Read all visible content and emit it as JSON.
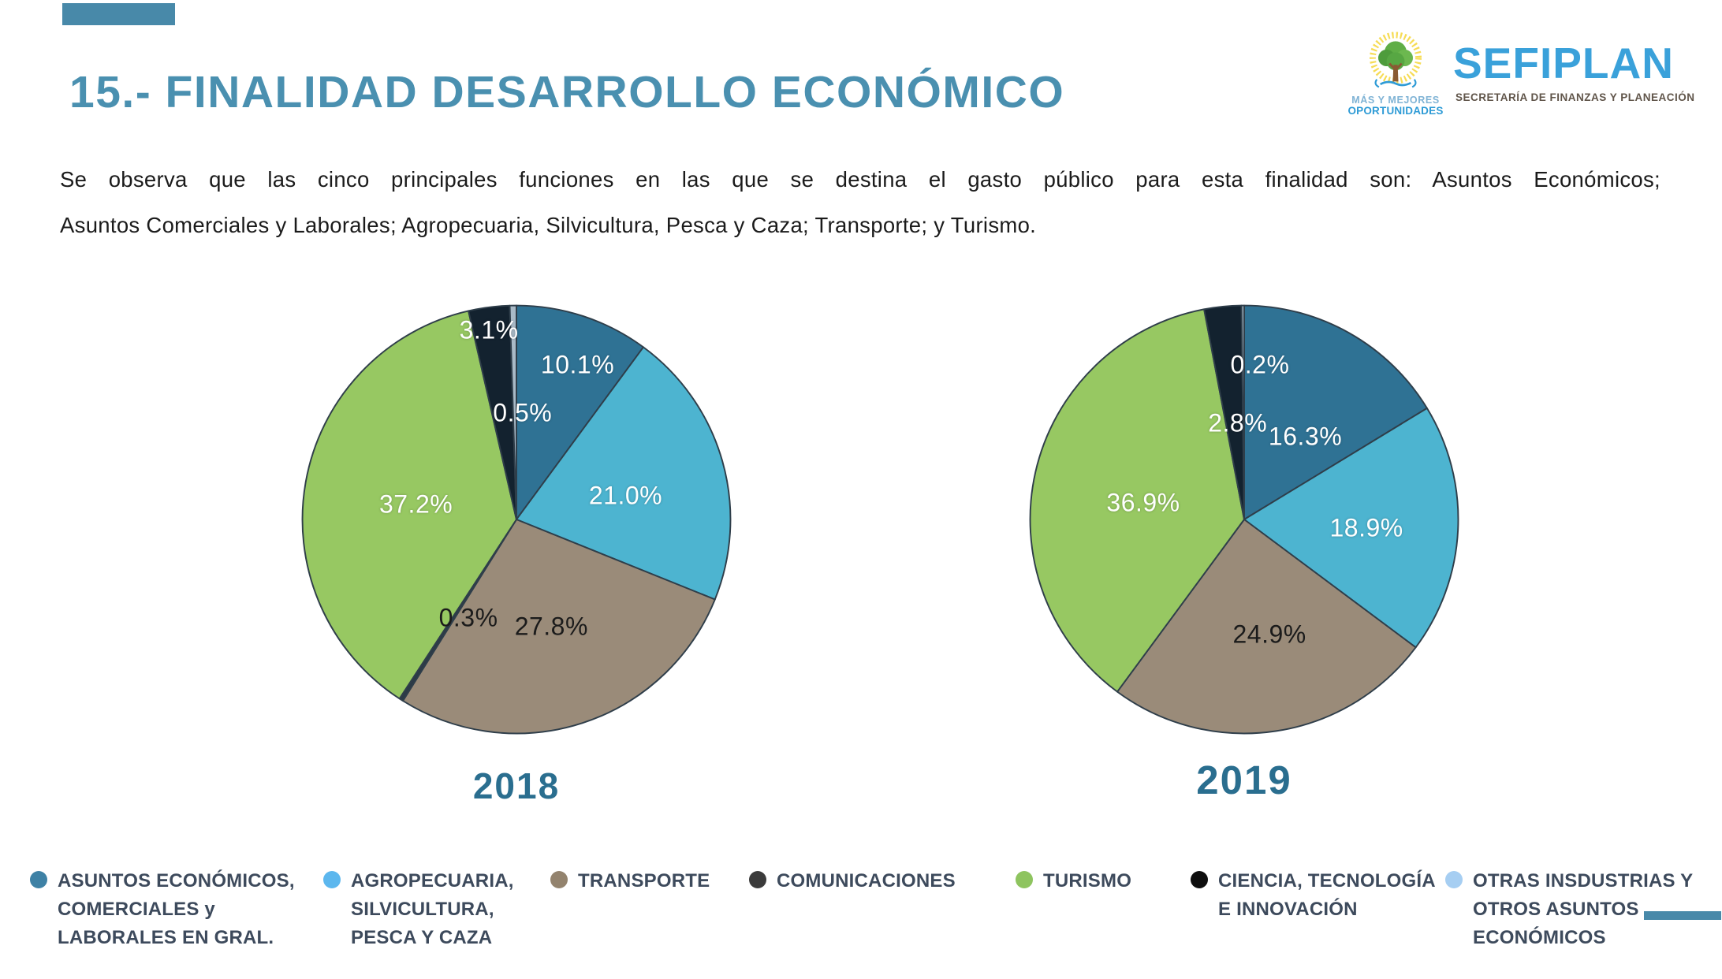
{
  "slide": {
    "title": "15.- FINALIDAD DESARROLLO ECONÓMICO",
    "paragraph_line1": "Se observa que las cinco principales funciones en las que se destina el gasto público para esta finalidad son: Asuntos Económicos;",
    "paragraph_line2": "Asuntos Comerciales y Laborales; Agropecuaria, Silvicultura, Pesca y Caza;  Transporte; y Turismo.",
    "accent_color": "#4889A9",
    "title_color": "#4A90B0",
    "year_label_color": "#2A6E8F"
  },
  "logo": {
    "tagline_line1": "MÁS Y MEJORES",
    "tagline_line2": "OPORTUNIDADES",
    "name": "SEFIPLAN",
    "subtitle": "SECRETARÍA DE FINANZAS Y PLANEACIÓN",
    "name_color": "#3AA1DA"
  },
  "chart_data": {
    "type": "pie",
    "unit": "percent",
    "start_angle_deg": -90,
    "direction": "clockwise",
    "legend_position": "bottom",
    "stroke_color": "#2F3E4A",
    "categories": [
      "ASUNTOS ECONÓMICOS, COMERCIALES y LABORALES EN GRAL.",
      "AGROPECUARIA, SILVICULTURA, PESCA Y CAZA",
      "TRANSPORTE",
      "COMUNICACIONES",
      "TURISMO",
      "CIENCIA, TECNOLOGÍA E INNOVACIÓN",
      "OTRAS INSDUSTRIAS Y OTROS ASUNTOS ECONÓMICOS"
    ],
    "colors": [
      "#2F7294",
      "#4DB4D0",
      "#9A8B79",
      "#2C3A46",
      "#97C862",
      "#13222F",
      "#A9BAC7"
    ],
    "charts": [
      {
        "year": "2018",
        "slices": [
          {
            "category_index": 0,
            "value": 10.1,
            "label": "10.1%",
            "label_color": "#FFFFFF",
            "label_pos": [
              64,
              14.6
            ]
          },
          {
            "category_index": 1,
            "value": 21.0,
            "label": "21.0%",
            "label_color": "#FFFFFF",
            "label_pos": [
              75,
              44.5
            ]
          },
          {
            "category_index": 2,
            "value": 27.8,
            "label": "27.8%",
            "label_color": "#1B1B1B",
            "label_pos": [
              58,
              74.5
            ]
          },
          {
            "category_index": 3,
            "value": 0.3,
            "label": "0.3%",
            "label_color": "#1B1B1B",
            "label_pos": [
              39,
              72.5
            ]
          },
          {
            "category_index": 4,
            "value": 37.2,
            "label": "37.2%",
            "label_color": "#FFFFFF",
            "label_pos": [
              27,
              46.5
            ]
          },
          {
            "category_index": 5,
            "value": 3.1,
            "label": "3.1%",
            "label_color": "#FFFFFF",
            "label_pos": [
              43.7,
              6.7
            ]
          },
          {
            "category_index": 6,
            "value": 0.5,
            "label": "0.5%",
            "label_color": "#FFFFFF",
            "label_pos": [
              51.4,
              25.6
            ]
          }
        ]
      },
      {
        "year": "2019",
        "slices": [
          {
            "category_index": 0,
            "value": 16.3,
            "label": "16.3%",
            "label_color": "#FFFFFF",
            "label_pos": [
              64,
              31
            ]
          },
          {
            "category_index": 1,
            "value": 18.9,
            "label": "18.9%",
            "label_color": "#FFFFFF",
            "label_pos": [
              78,
              52
            ]
          },
          {
            "category_index": 2,
            "value": 24.9,
            "label": "24.9%",
            "label_color": "#1B1B1B",
            "label_pos": [
              55.8,
              76.4
            ]
          },
          {
            "category_index": 3,
            "value": 0.0,
            "label": "",
            "label_color": "",
            "label_pos": [
              0,
              0
            ]
          },
          {
            "category_index": 4,
            "value": 36.9,
            "label": "36.9%",
            "label_color": "#FFFFFF",
            "label_pos": [
              26.9,
              46.2
            ]
          },
          {
            "category_index": 5,
            "value": 2.8,
            "label": "2.8%",
            "label_color": "#FFFFFF",
            "label_pos": [
              48.5,
              28
            ]
          },
          {
            "category_index": 6,
            "value": 0.2,
            "label": "0.2%",
            "label_color": "#FFFFFF",
            "label_pos": [
              53.6,
              14.6
            ]
          }
        ]
      }
    ]
  },
  "legend": {
    "items": [
      {
        "label": "ASUNTOS ECONÓMICOS,\nCOMERCIALES y\nLABORALES EN GRAL.",
        "color": "#3E81A5"
      },
      {
        "label": "AGROPECUARIA,\nSILVICULTURA,\nPESCA Y CAZA",
        "color": "#5CB7EE"
      },
      {
        "label": "TRANSPORTE",
        "color": "#93836E"
      },
      {
        "label": "COMUNICACIONES",
        "color": "#3B3B3B"
      },
      {
        "label": "TURISMO",
        "color": "#8EC45F"
      },
      {
        "label": "CIENCIA, TECNOLOGÍA\nE INNOVACIÓN",
        "color": "#0E0E0E"
      },
      {
        "label": "OTRAS INSDUSTRIAS Y\nOTROS ASUNTOS\nECONÓMICOS",
        "color": "#A6CEF2"
      }
    ]
  }
}
